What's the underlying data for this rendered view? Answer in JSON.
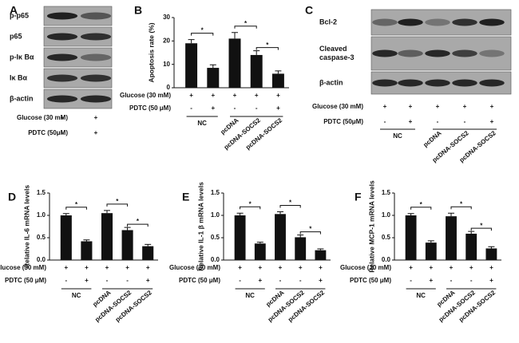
{
  "panel_labels": [
    "A",
    "B",
    "C",
    "D",
    "E",
    "F"
  ],
  "blots": [
    {
      "rows": [
        [
          "p-p65"
        ],
        [
          "p65"
        ],
        [
          "p-Iκ Bα"
        ],
        [
          "Iκ Bα"
        ],
        [
          "β-actin"
        ]
      ],
      "conditions": [
        {
          "label": "Glucose (30 mM)",
          "signs": [
            "+",
            "+"
          ]
        },
        {
          "label": "PDTC (50μM)",
          "signs": [
            "-",
            "+"
          ]
        }
      ]
    },
    {
      "rows": [
        [
          "Bcl-2"
        ],
        [
          "Cleaved",
          "caspase-3"
        ],
        [
          "β-actin"
        ]
      ],
      "conditions": [
        {
          "label": "Glucose (30 mM)",
          "signs": [
            "+",
            "+",
            "+",
            "+",
            "+"
          ]
        },
        {
          "label": "PDTC (50μM)",
          "signs": [
            "-",
            "+",
            "-",
            "-",
            "+"
          ]
        }
      ],
      "groups": [
        "NC",
        null,
        "pcDNA",
        "pcDNA-SOCS2",
        "pcDNA-SOCS2"
      ]
    }
  ],
  "chart_data": [
    {
      "type": "bar",
      "y_label": "Apoptosis rate (%)",
      "color": "#111111",
      "categories": [
        "NC",
        null,
        "pcDNA",
        "pcDNA-SOCS2",
        "pcDNA-SOCS2"
      ],
      "values": [
        19,
        8.5,
        21,
        14,
        6
      ],
      "errors": [
        1.6,
        1.3,
        2.6,
        1.8,
        1.2
      ],
      "ylim": [
        0,
        30
      ],
      "yticks": [
        0,
        10,
        20,
        30
      ],
      "annotations": [
        "*",
        "*",
        "*"
      ],
      "conditions": [
        {
          "label": "Glucose (30 mM)",
          "signs": [
            "+",
            "+",
            "+",
            "+",
            "+"
          ]
        },
        {
          "label": "PDTC (50 μM)",
          "signs": [
            "-",
            "+",
            "-",
            "-",
            "+"
          ]
        }
      ]
    },
    {
      "type": "bar",
      "y_label": "Relative IL-6 mRNA levels",
      "color": "#111111",
      "categories": [
        "NC",
        null,
        "pcDNA",
        "pcDNA-SOCS2",
        "pcDNA-SOCS2"
      ],
      "values": [
        1.0,
        0.42,
        1.05,
        0.67,
        0.31
      ],
      "errors": [
        0.04,
        0.03,
        0.06,
        0.06,
        0.04
      ],
      "ylim": [
        0,
        1.5
      ],
      "yticks": [
        {
          "value": 0,
          "label": "0.0"
        },
        0.5,
        {
          "value": 1,
          "label": "1.0"
        },
        1.5
      ],
      "annotations": [
        "*",
        "*",
        "*"
      ],
      "conditions": [
        {
          "label": "Glucose (30 mM)",
          "signs": [
            "+",
            "+",
            "+",
            "+",
            "+"
          ]
        },
        {
          "label": "PDTC (50 μM)",
          "signs": [
            "-",
            "+",
            "-",
            "-",
            "+"
          ]
        }
      ]
    },
    {
      "type": "bar",
      "y_label": "Relative IL-1 β mRNA levels",
      "color": "#111111",
      "categories": [
        "NC",
        null,
        "pcDNA",
        "pcDNA-SOCS2",
        "pcDNA-SOCS2"
      ],
      "values": [
        1.0,
        0.37,
        1.03,
        0.51,
        0.22
      ],
      "errors": [
        0.05,
        0.03,
        0.05,
        0.05,
        0.03
      ],
      "ylim": [
        0,
        1.5
      ],
      "yticks": [
        {
          "value": 0,
          "label": "0.0"
        },
        0.5,
        {
          "value": 1,
          "label": "1.0"
        },
        1.5
      ],
      "annotations": [
        "*",
        "*",
        "*"
      ],
      "conditions": [
        {
          "label": "Glucose (30 mM)",
          "signs": [
            "+",
            "+",
            "+",
            "+",
            "+"
          ]
        },
        {
          "label": "PDTC (50 μM)",
          "signs": [
            "-",
            "+",
            "-",
            "-",
            "+"
          ]
        }
      ]
    },
    {
      "type": "bar",
      "y_label": "Relative MCP-1 mRNA levels",
      "color": "#111111",
      "categories": [
        "NC",
        null,
        "pcDNA",
        "pcDNA-SOCS2",
        "pcDNA-SOCS2"
      ],
      "values": [
        1.0,
        0.39,
        0.98,
        0.59,
        0.26
      ],
      "errors": [
        0.04,
        0.04,
        0.07,
        0.05,
        0.04
      ],
      "ylim": [
        0,
        1.5
      ],
      "yticks": [
        {
          "value": 0,
          "label": "0.0"
        },
        0.5,
        {
          "value": 1,
          "label": "1.0"
        },
        1.5
      ],
      "annotations": [
        "*",
        "*",
        "*"
      ],
      "conditions": [
        {
          "label": "Glucose (30 mM)",
          "signs": [
            "+",
            "+",
            "+",
            "+",
            "+"
          ]
        },
        {
          "label": "PDTC (50 μM)",
          "signs": [
            "-",
            "+",
            "-",
            "-",
            "+"
          ]
        }
      ]
    }
  ]
}
